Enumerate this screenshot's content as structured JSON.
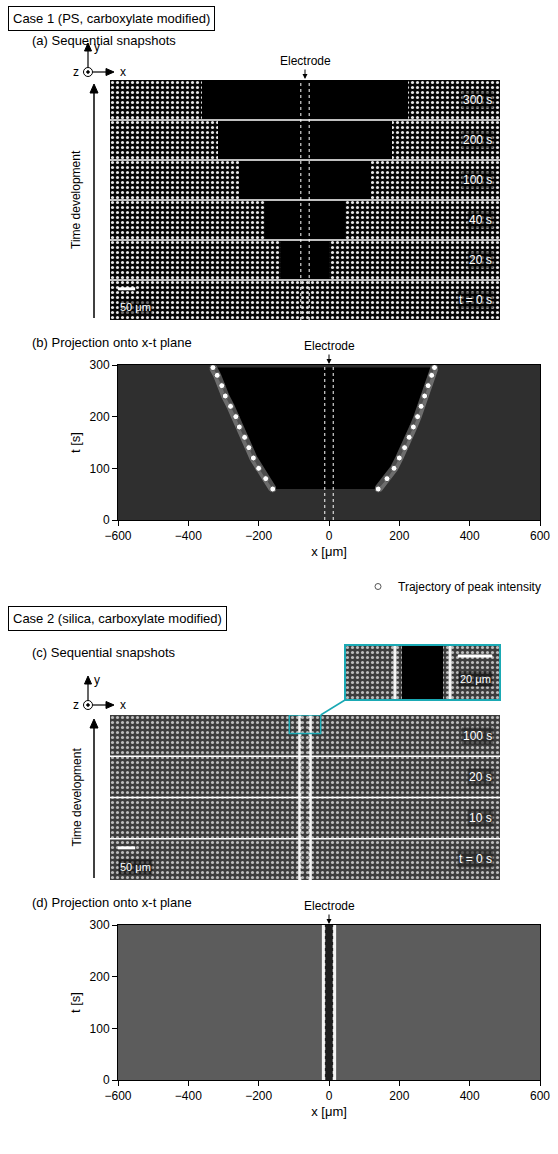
{
  "headers": [
    "Case 1 (PS, carboxylate modified)",
    "Case 2 (silica, carboxylate modified)"
  ],
  "chart_data": [
    {
      "type": "snapshots",
      "title": "(a) Sequential snapshots",
      "axes_labels": [
        "y",
        "z",
        "x"
      ],
      "arrow_label": "Time development",
      "electrode_label": "Electrode",
      "electrode_edges": [
        -12,
        12
      ],
      "xlim": [
        -560,
        560
      ],
      "scale_bar": {
        "length": 50,
        "label": "50 μm"
      },
      "frames": [
        {
          "label": "t = 0 s",
          "depleted_halfwidth": 0
        },
        {
          "label": "20 s",
          "depleted_halfwidth": 70
        },
        {
          "label": "40 s",
          "depleted_halfwidth": 115
        },
        {
          "label": "100 s",
          "depleted_halfwidth": 190
        },
        {
          "label": "200 s",
          "depleted_halfwidth": 250
        },
        {
          "label": "300 s",
          "depleted_halfwidth": 295
        }
      ]
    },
    {
      "type": "scatter",
      "title": "(b) Projection onto x-t plane",
      "electrode_label": "Electrode",
      "electrode_edges": [
        -12,
        12
      ],
      "xlabel": "x [μm]",
      "ylabel": "t [s]",
      "xlim": [
        -600,
        600
      ],
      "xticks": [
        {
          "value": -600,
          "label": "−600"
        },
        {
          "value": -400,
          "label": "−400"
        },
        {
          "value": -200,
          "label": "−200"
        },
        0,
        200,
        400,
        600
      ],
      "ylim": [
        0,
        300
      ],
      "yticks": [
        0,
        100,
        200,
        300
      ],
      "grid": false,
      "legend": "below",
      "series": [
        {
          "name": "Trajectory of peak intensity",
          "color": "#ffffff",
          "marker": "circle",
          "x": [
            -160,
            -180,
            -200,
            -215,
            -228,
            -240,
            -255,
            -265,
            -280,
            -295,
            -305,
            -318,
            -330,
            null,
            140,
            165,
            185,
            200,
            215,
            228,
            240,
            252,
            262,
            272,
            282,
            292,
            300
          ],
          "values": [
            60,
            80,
            100,
            120,
            140,
            160,
            180,
            200,
            220,
            240,
            260,
            280,
            295,
            null,
            60,
            80,
            100,
            120,
            140,
            160,
            180,
            200,
            220,
            240,
            260,
            280,
            295
          ]
        }
      ]
    },
    {
      "type": "snapshots",
      "title": "(c) Sequential snapshots",
      "axes_labels": [
        "y",
        "z",
        "x"
      ],
      "arrow_label": "Time development",
      "electrode_edges": [
        -12,
        12
      ],
      "accumulated_edges": [
        -16,
        16
      ],
      "xlim": [
        -560,
        560
      ],
      "scale_bar": {
        "length": 50,
        "label": "50 μm"
      },
      "inset": {
        "xlim": [
          -45,
          45
        ],
        "scale_bar": {
          "length": 20,
          "label": "20 μm"
        }
      },
      "frames": [
        {
          "label": "t = 0 s"
        },
        {
          "label": "10 s"
        },
        {
          "label": "20 s"
        },
        {
          "label": "100 s"
        }
      ]
    },
    {
      "type": "projection",
      "title": "(d) Projection onto x-t plane",
      "electrode_label": "Electrode",
      "electrode_edges": [
        -12,
        12
      ],
      "accumulated_edges": [
        -16,
        16
      ],
      "xlabel": "x [μm]",
      "ylabel": "t [s]",
      "xlim": [
        -600,
        600
      ],
      "xticks": [
        {
          "value": -600,
          "label": "−600"
        },
        {
          "value": -400,
          "label": "−400"
        },
        {
          "value": -200,
          "label": "−200"
        },
        0,
        200,
        400,
        600
      ],
      "ylim": [
        0,
        300
      ],
      "yticks": [
        0,
        100,
        200,
        300
      ],
      "grid": false
    }
  ]
}
